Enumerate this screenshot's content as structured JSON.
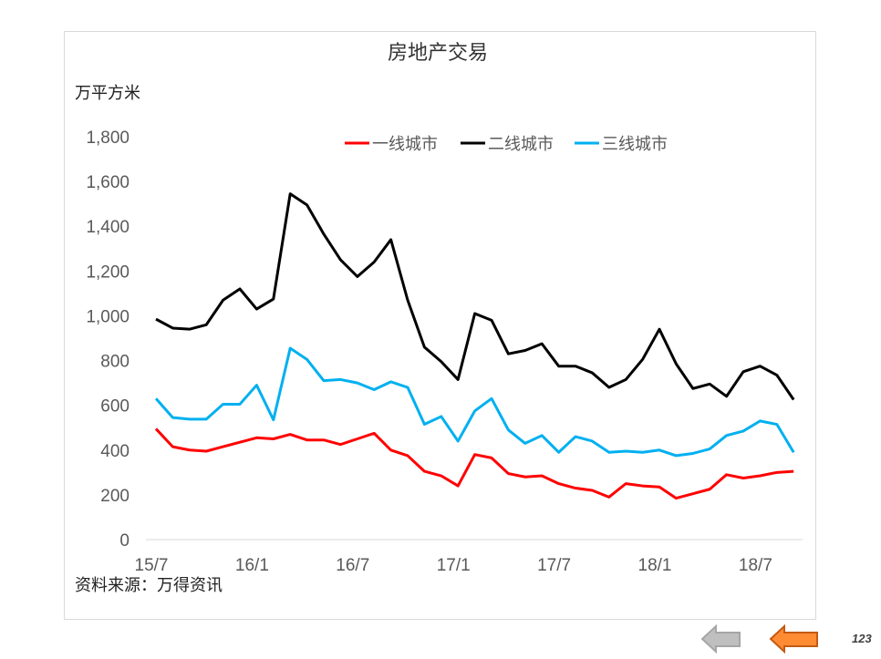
{
  "page_number": "123",
  "navigation": {
    "back_icon": "arrow-left-gray",
    "forward_icon": "arrow-left-orange"
  },
  "chart_data": {
    "type": "line",
    "title": "房地产交易",
    "ylabel": "万平方米",
    "source": "资料来源：万得资讯",
    "ylim": [
      0,
      1800
    ],
    "yticks": [
      0,
      200,
      400,
      600,
      800,
      1000,
      1200,
      1400,
      1600,
      1800
    ],
    "ytick_labels": [
      "0",
      "200",
      "400",
      "600",
      "800",
      "1,000",
      "1,200",
      "1,400",
      "1,600",
      "1,800"
    ],
    "xtick_labels": [
      "15/7",
      "16/1",
      "16/7",
      "17/1",
      "17/7",
      "18/1",
      "18/7"
    ],
    "xtick_index": [
      0,
      6,
      12,
      18,
      24,
      30,
      36
    ],
    "legend_position": "top-right",
    "grid": false,
    "series": [
      {
        "name": "一线城市",
        "color": "#ff0000",
        "values": [
          495,
          415,
          400,
          395,
          415,
          435,
          455,
          450,
          470,
          445,
          445,
          425,
          450,
          475,
          400,
          375,
          305,
          285,
          240,
          380,
          365,
          295,
          280,
          285,
          250,
          230,
          220,
          190,
          250,
          240,
          235,
          185,
          205,
          225,
          290,
          275,
          285,
          300,
          305
        ]
      },
      {
        "name": "二线城市",
        "color": "#000000",
        "values": [
          985,
          945,
          940,
          960,
          1070,
          1120,
          1030,
          1075,
          1545,
          1495,
          1365,
          1250,
          1175,
          1240,
          1340,
          1070,
          860,
          795,
          715,
          1010,
          980,
          830,
          845,
          875,
          775,
          775,
          745,
          680,
          715,
          805,
          940,
          785,
          675,
          695,
          640,
          750,
          775,
          735,
          625
        ]
      },
      {
        "name": "三线城市",
        "color": "#00b0f0",
        "values": [
          630,
          545,
          538,
          538,
          605,
          605,
          690,
          535,
          855,
          805,
          710,
          715,
          700,
          670,
          705,
          680,
          515,
          550,
          440,
          575,
          630,
          490,
          430,
          465,
          390,
          460,
          440,
          390,
          395,
          390,
          400,
          375,
          385,
          405,
          465,
          485,
          530,
          515,
          390
        ]
      }
    ]
  }
}
